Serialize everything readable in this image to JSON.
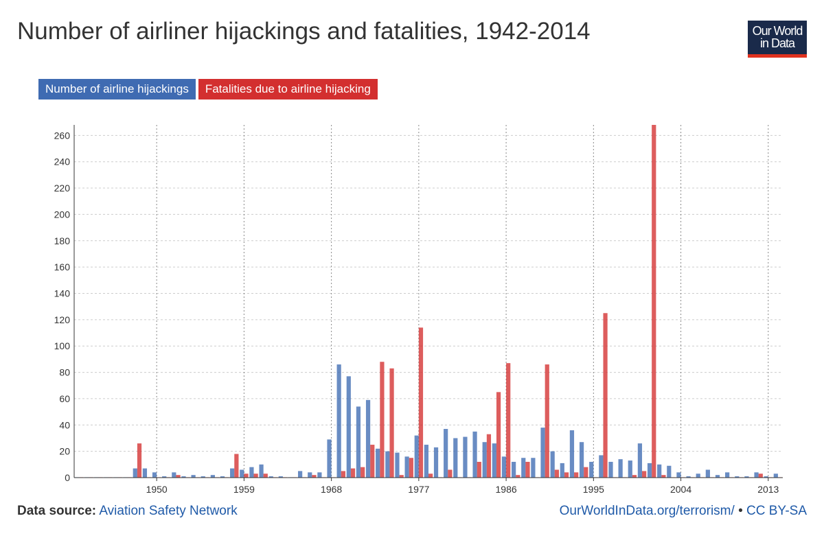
{
  "title": "Number of airliner hijackings and fatalities, 1942-2014",
  "logo": {
    "line1": "Our World",
    "line2": "in Data"
  },
  "legend": [
    {
      "label": "Number of airline hijackings",
      "color": "#3f6bb2"
    },
    {
      "label": "Fatalities due to airline hijacking",
      "color": "#d32f2f"
    }
  ],
  "footer": {
    "source_label": "Data source:",
    "source_name": "Aviation Safety Network",
    "link_text": "OurWorldInData.org/terrorism/",
    "separator": "•",
    "license": "CC BY-SA"
  },
  "chart_data": {
    "type": "bar",
    "x": [
      1942,
      1943,
      1944,
      1945,
      1946,
      1947,
      1948,
      1949,
      1950,
      1951,
      1952,
      1953,
      1954,
      1955,
      1956,
      1957,
      1958,
      1959,
      1960,
      1961,
      1962,
      1963,
      1964,
      1965,
      1966,
      1967,
      1968,
      1969,
      1970,
      1971,
      1972,
      1973,
      1974,
      1975,
      1976,
      1977,
      1978,
      1979,
      1980,
      1981,
      1982,
      1983,
      1984,
      1985,
      1986,
      1987,
      1988,
      1989,
      1990,
      1991,
      1992,
      1993,
      1994,
      1995,
      1996,
      1997,
      1998,
      1999,
      2000,
      2001,
      2002,
      2003,
      2004,
      2005,
      2006,
      2007,
      2008,
      2009,
      2010,
      2011,
      2012,
      2013,
      2014
    ],
    "series": [
      {
        "name": "Number of airline hijackings",
        "color": "#3f6bb2",
        "values": [
          0,
          0,
          0,
          0,
          0,
          0,
          7,
          7,
          4,
          1,
          4,
          1,
          2,
          1,
          2,
          1,
          7,
          6,
          8,
          10,
          1,
          1,
          0,
          5,
          4,
          4,
          29,
          86,
          77,
          54,
          59,
          22,
          20,
          19,
          16,
          32,
          25,
          23,
          37,
          30,
          31,
          35,
          27,
          26,
          16,
          12,
          15,
          15,
          38,
          20,
          11,
          36,
          27,
          12,
          17,
          12,
          14,
          13,
          26,
          11,
          10,
          9,
          4,
          1,
          3,
          6,
          2,
          4,
          1,
          1,
          4,
          1,
          3
        ]
      },
      {
        "name": "Fatalities due to airline hijacking",
        "color": "#d32f2f",
        "values": [
          0,
          0,
          0,
          0,
          0,
          0,
          26,
          0,
          0,
          0,
          2,
          0,
          0,
          0,
          0,
          0,
          18,
          3,
          3,
          3,
          0,
          0,
          0,
          0,
          2,
          0,
          0,
          5,
          7,
          8,
          25,
          88,
          83,
          2,
          15,
          114,
          3,
          0,
          6,
          0,
          0,
          12,
          33,
          65,
          87,
          2,
          12,
          0,
          86,
          6,
          4,
          4,
          8,
          0,
          125,
          0,
          0,
          2,
          5,
          268,
          2,
          0,
          0,
          0,
          0,
          0,
          0,
          0,
          0,
          0,
          3,
          0,
          0
        ]
      }
    ],
    "x_ticks": [
      1950,
      1959,
      1968,
      1977,
      1986,
      1995,
      2004,
      2013
    ],
    "y_ticks": [
      0,
      20,
      40,
      60,
      80,
      100,
      120,
      140,
      160,
      180,
      200,
      220,
      240,
      260
    ],
    "ylim": [
      0,
      268
    ],
    "grid": true,
    "legend_position": "top-left"
  }
}
